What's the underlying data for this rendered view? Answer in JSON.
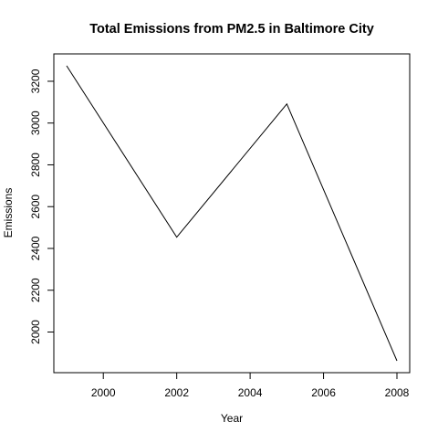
{
  "chart_data": {
    "type": "line",
    "title": "Total Emissions from PM2.5 in Baltimore City",
    "xlabel": "Year",
    "ylabel": "Emissions",
    "x": [
      1999,
      2002,
      2005,
      2008
    ],
    "series": [
      {
        "values": [
          3274.18,
          2453.92,
          3091.35,
          1862.28
        ]
      }
    ],
    "xlim": [
      1999,
      2008
    ],
    "ylim": [
      1862.28,
      3274.18
    ],
    "xticks": [
      2000,
      2002,
      2004,
      2006,
      2008
    ],
    "yticks": [
      2000,
      2200,
      2400,
      2600,
      2800,
      3000,
      3200
    ],
    "grid": false,
    "legend": "none",
    "line_color": "#000000"
  }
}
